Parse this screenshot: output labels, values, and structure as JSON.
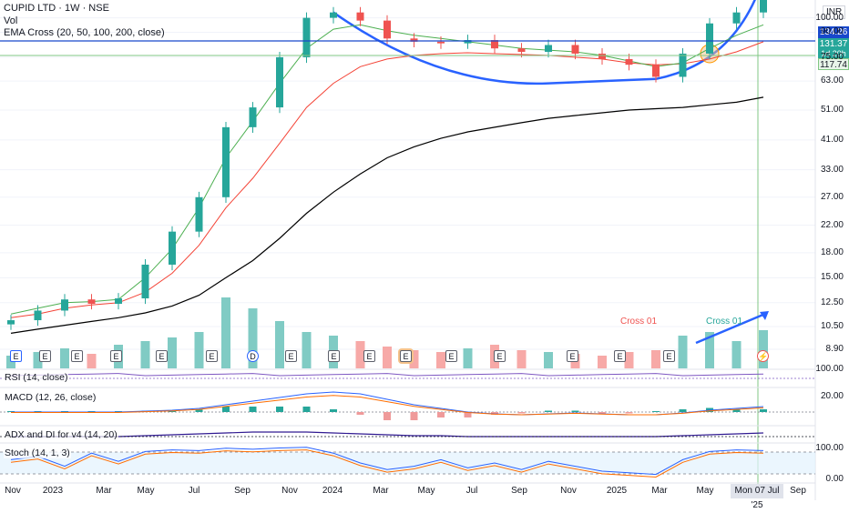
{
  "header": {
    "title": "CUPID LTD · 1W · NSE",
    "volume_label": "Vol",
    "ema_label": "EMA Cross (20, 50, 100, 200, close)",
    "currency": "INR"
  },
  "price_tags": {
    "top": "134.26",
    "last": "131.37",
    "countdown": "1d 20h",
    "support": "117.74"
  },
  "price_axis": [
    "100.00",
    "90.00",
    "75.00",
    "63.00",
    "51.00",
    "41.00",
    "33.00",
    "27.00",
    "22.00",
    "18.00",
    "15.00",
    "12.50",
    "10.50",
    "8.90"
  ],
  "indicators": {
    "rsi": "RSI (14, close)",
    "macd": "MACD (12, 26, close)",
    "adx": "ADX and DI for v4 (14, 20)",
    "stoch": "Stoch (14, 1, 3)"
  },
  "indicator_axis": {
    "rsi": "100.00",
    "macd": "20.00",
    "stoch_top": "100.00",
    "stoch_bottom": "0.00"
  },
  "time_axis": [
    "Nov",
    "2023",
    "Mar",
    "May",
    "Jul",
    "Sep",
    "Nov",
    "2024",
    "Mar",
    "May",
    "Jul",
    "Sep",
    "Nov",
    "2025",
    "Mar",
    "May",
    "Sep"
  ],
  "cursor_date": "Mon 07 Jul '25",
  "annotations": {
    "cross_red": "Cross 01",
    "cross_green": "Cross 01"
  },
  "event_markers": [
    "E",
    "E",
    "E",
    "E",
    "E",
    "E",
    "D",
    "E",
    "E",
    "E",
    "E",
    "E",
    "E",
    "E",
    "E",
    "E"
  ],
  "colors": {
    "up": "#26a69a",
    "down": "#ef5350",
    "ema20": "#4caf50",
    "ema50": "#f44336",
    "ema200": "#000000",
    "cup_line": "#2962ff",
    "level_line": "#1848cc"
  },
  "chart_data": {
    "type": "candlestick",
    "interval": "1W",
    "x_range": [
      "2022-11",
      "2025-09"
    ],
    "y_scale": "log",
    "ylim": [
      8.0,
      108.0
    ],
    "y_ticks": [
      8.9,
      10.5,
      12.5,
      15,
      18,
      22,
      27,
      33,
      41,
      51,
      63,
      75,
      90,
      100
    ],
    "close_series": [
      {
        "date": "2022-11",
        "close": 11.0
      },
      {
        "date": "2023-01",
        "close": 11.8
      },
      {
        "date": "2023-03",
        "close": 12.8
      },
      {
        "date": "2023-05",
        "close": 12.4
      },
      {
        "date": "2023-07",
        "close": 12.9
      },
      {
        "date": "2023-08",
        "close": 16.5
      },
      {
        "date": "2023-09",
        "close": 21.0
      },
      {
        "date": "2023-10",
        "close": 27.0
      },
      {
        "date": "2023-11",
        "close": 45.0
      },
      {
        "date": "2023-12",
        "close": 52.0
      },
      {
        "date": "2024-01",
        "close": 75.0
      },
      {
        "date": "2024-02",
        "close": 100.0
      },
      {
        "date": "2024-03",
        "close": 104.0
      },
      {
        "date": "2024-04",
        "close": 98.0
      },
      {
        "date": "2024-05",
        "close": 86.0
      },
      {
        "date": "2024-06",
        "close": 84.0
      },
      {
        "date": "2024-07",
        "close": 83.0
      },
      {
        "date": "2024-08",
        "close": 85.0
      },
      {
        "date": "2024-09",
        "close": 80.0
      },
      {
        "date": "2024-10",
        "close": 78.0
      },
      {
        "date": "2024-11",
        "close": 82.0
      },
      {
        "date": "2024-12",
        "close": 77.0
      },
      {
        "date": "2025-01",
        "close": 74.0
      },
      {
        "date": "2025-02",
        "close": 71.0
      },
      {
        "date": "2025-03",
        "close": 65.0
      },
      {
        "date": "2025-04",
        "close": 77.0
      },
      {
        "date": "2025-05",
        "close": 96.0
      },
      {
        "date": "2025-06",
        "close": 104.0
      },
      {
        "date": "2025-07",
        "close": 131.37
      }
    ],
    "ema20": [
      11.5,
      12.0,
      12.5,
      12.6,
      12.8,
      15.0,
      18.5,
      25.0,
      36.0,
      47.0,
      62.0,
      80.0,
      92.0,
      95.0,
      91.0,
      88.0,
      86.0,
      84.0,
      82.0,
      80.0,
      79.0,
      78.0,
      76.0,
      73.0,
      70.0,
      72.0,
      80.0,
      88.0,
      95.0
    ],
    "ema50": [
      11.2,
      11.5,
      12.0,
      12.3,
      12.5,
      13.5,
      15.5,
      19.0,
      25.0,
      31.0,
      40.0,
      52.0,
      62.0,
      70.0,
      74.0,
      76.0,
      77.0,
      77.5,
      77.0,
      76.5,
      76.0,
      75.0,
      74.0,
      72.0,
      71.0,
      71.5,
      74.0,
      78.0,
      84.0
    ],
    "ema200": [
      10.0,
      10.3,
      10.6,
      10.9,
      11.2,
      11.6,
      12.2,
      13.2,
      15.0,
      17.0,
      20.0,
      24.0,
      28.0,
      32.0,
      36.0,
      39.0,
      41.5,
      43.5,
      45.0,
      46.5,
      48.0,
      49.0,
      50.0,
      51.0,
      51.5,
      52.0,
      53.0,
      54.0,
      56.0
    ],
    "levels": {
      "resistance": 134.26,
      "support": 117.74
    },
    "stoch_range": [
      0,
      100
    ],
    "macd_level": 20.0
  }
}
